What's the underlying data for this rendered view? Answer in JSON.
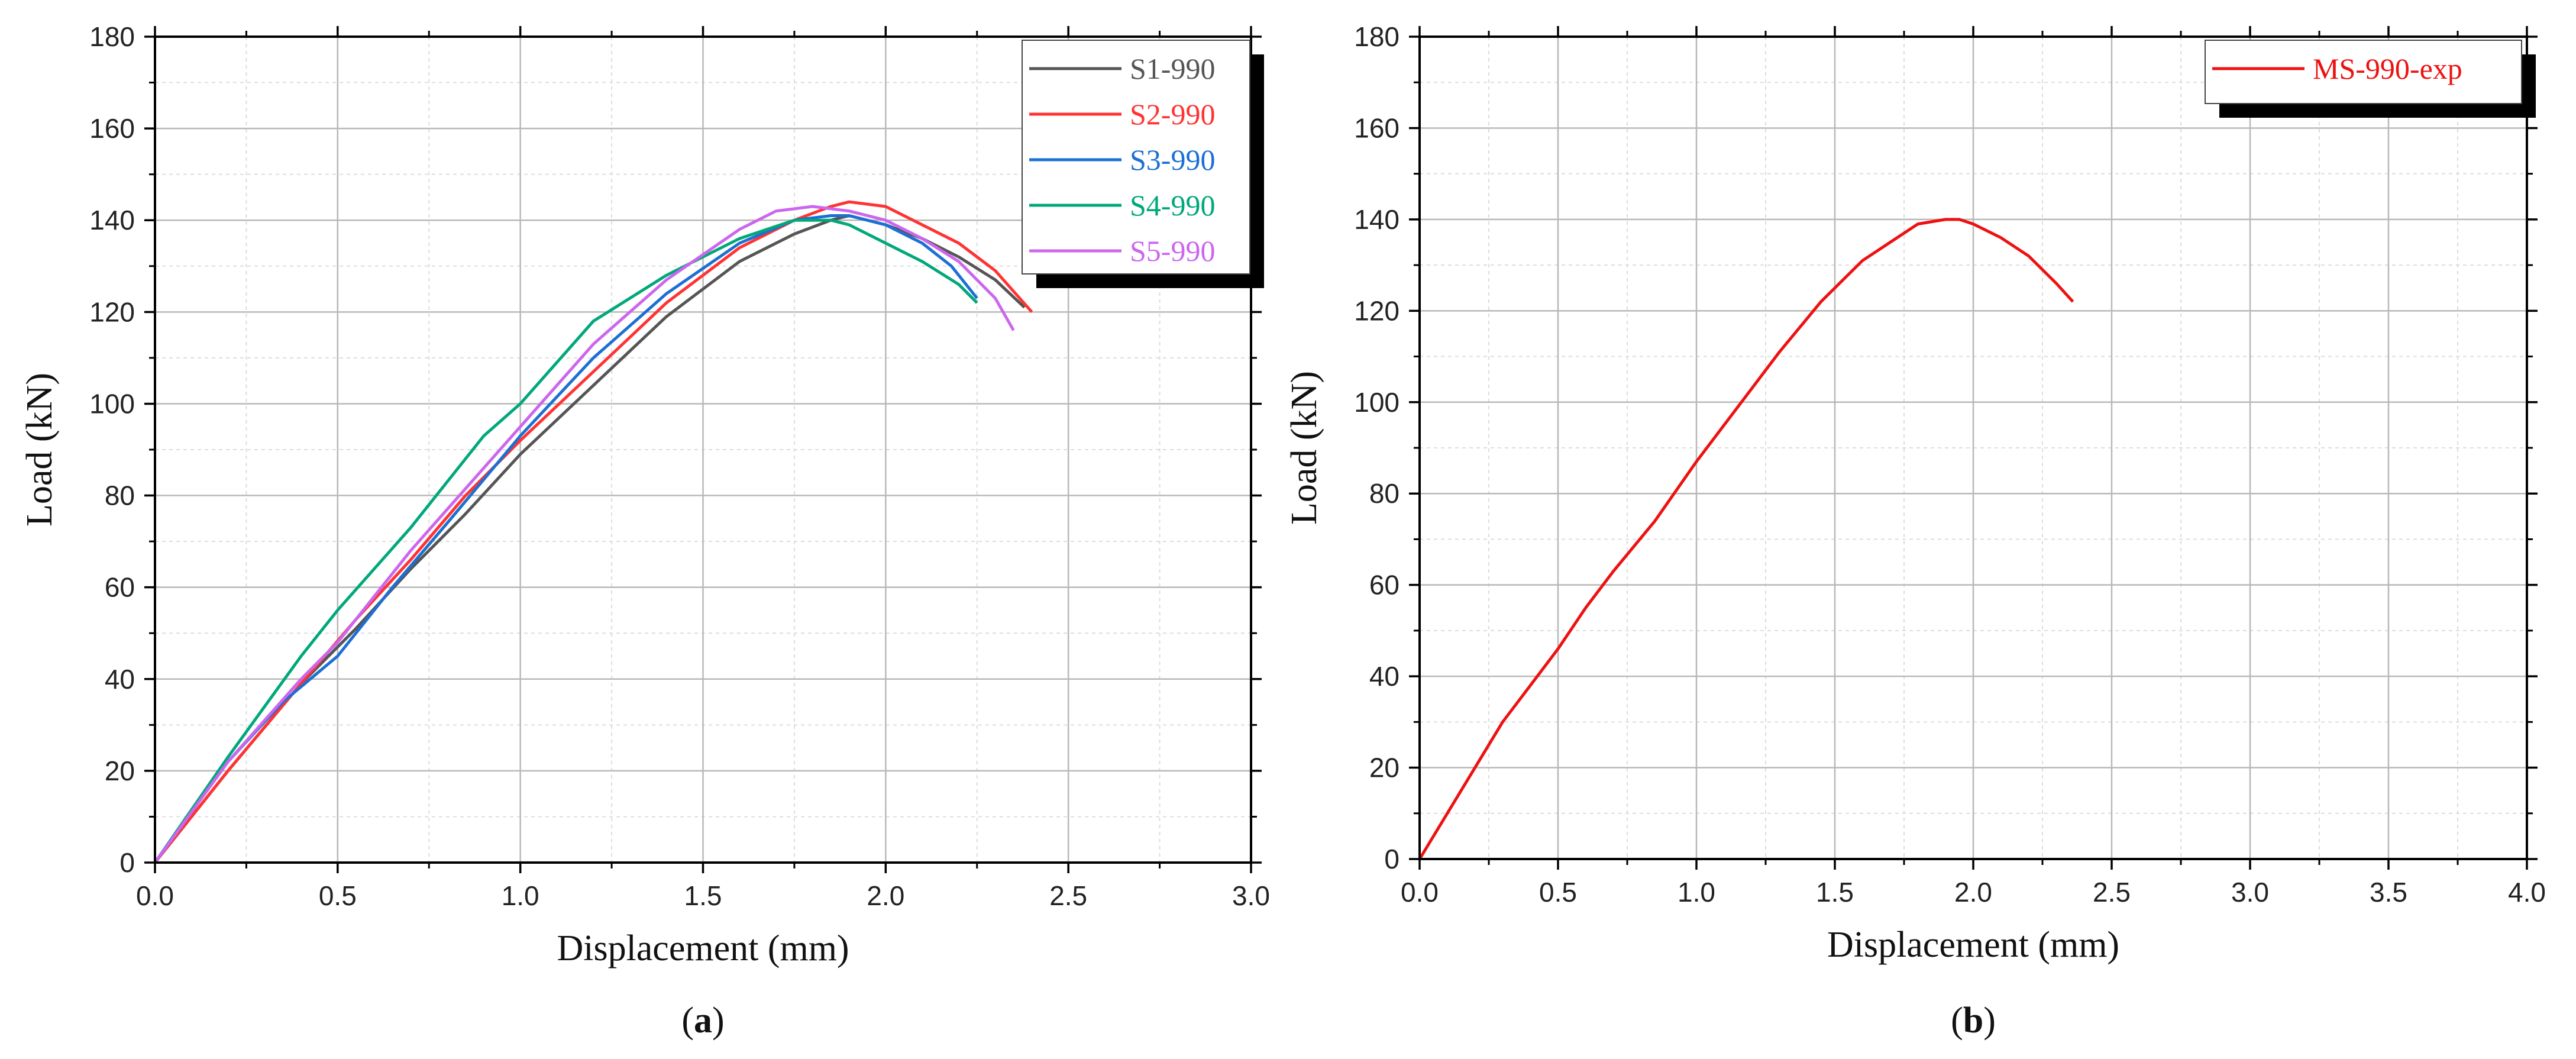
{
  "chart_data": [
    {
      "type": "line",
      "panel_label": "a",
      "title": "",
      "xlabel": "Displacement (mm)",
      "ylabel": "Load (kN)",
      "xlim": [
        0.0,
        3.0
      ],
      "ylim": [
        0,
        180
      ],
      "xticks": [
        "0.0",
        "0.5",
        "1.0",
        "1.5",
        "2.0",
        "2.5",
        "3.0"
      ],
      "yticks": [
        "0",
        "20",
        "40",
        "60",
        "80",
        "100",
        "120",
        "140",
        "160",
        "180"
      ],
      "grid": true,
      "legend_position": "top-right",
      "series": [
        {
          "name": "S1-990",
          "color": "#555555",
          "x": [
            0,
            0.2,
            0.4,
            0.55,
            0.7,
            0.85,
            1.0,
            1.2,
            1.4,
            1.6,
            1.75,
            1.85,
            1.9,
            2.0,
            2.1,
            2.2,
            2.3,
            2.38
          ],
          "y": [
            0,
            20,
            39,
            51,
            64,
            76,
            89,
            104,
            119,
            131,
            137,
            140,
            141,
            139,
            136,
            132,
            127,
            121
          ]
        },
        {
          "name": "S2-990",
          "color": "#ff3333",
          "x": [
            0,
            0.2,
            0.4,
            0.55,
            0.7,
            0.85,
            1.0,
            1.2,
            1.4,
            1.6,
            1.75,
            1.85,
            1.9,
            2.0,
            2.1,
            2.2,
            2.3,
            2.4
          ],
          "y": [
            0,
            20,
            39,
            53,
            66,
            80,
            92,
            107,
            122,
            134,
            140,
            143,
            144,
            143,
            139,
            135,
            129,
            120
          ]
        },
        {
          "name": "S3-990",
          "color": "#1c6fd4",
          "x": [
            0,
            0.2,
            0.35,
            0.5,
            0.65,
            0.8,
            1.0,
            1.2,
            1.4,
            1.6,
            1.75,
            1.85,
            1.9,
            2.0,
            2.1,
            2.18,
            2.25
          ],
          "y": [
            0,
            22,
            35,
            45,
            60,
            74,
            93,
            110,
            124,
            135,
            140,
            141,
            141,
            139,
            135,
            130,
            123
          ]
        },
        {
          "name": "S4-990",
          "color": "#00a87a",
          "x": [
            0,
            0.2,
            0.4,
            0.5,
            0.7,
            0.9,
            1.0,
            1.2,
            1.4,
            1.6,
            1.75,
            1.85,
            1.9,
            2.0,
            2.1,
            2.2,
            2.25
          ],
          "y": [
            0,
            23,
            45,
            55,
            73,
            93,
            100,
            118,
            128,
            136,
            140,
            140,
            139,
            135,
            131,
            126,
            122
          ]
        },
        {
          "name": "S5-990",
          "color": "#cc66ee",
          "x": [
            0,
            0.2,
            0.4,
            0.5,
            0.7,
            0.9,
            1.0,
            1.2,
            1.4,
            1.6,
            1.7,
            1.8,
            1.9,
            2.0,
            2.1,
            2.2,
            2.3,
            2.35
          ],
          "y": [
            0,
            22,
            40,
            48,
            68,
            86,
            95,
            113,
            127,
            138,
            142,
            143,
            142,
            140,
            136,
            131,
            123,
            116
          ]
        }
      ]
    },
    {
      "type": "line",
      "panel_label": "b",
      "title": "",
      "xlabel": "Displacement (mm)",
      "ylabel": "Load (kN)",
      "xlim": [
        0.0,
        4.0
      ],
      "ylim": [
        0,
        180
      ],
      "xticks": [
        "0.0",
        "0.5",
        "1.0",
        "1.5",
        "2.0",
        "2.5",
        "3.0",
        "3.5",
        "4.0"
      ],
      "yticks": [
        "0",
        "20",
        "40",
        "60",
        "80",
        "100",
        "120",
        "140",
        "160",
        "180"
      ],
      "grid": true,
      "legend_position": "top-right",
      "series": [
        {
          "name": "MS-990-exp",
          "color": "#ee1111",
          "x": [
            0,
            0.1,
            0.2,
            0.3,
            0.4,
            0.5,
            0.6,
            0.7,
            0.85,
            1.0,
            1.15,
            1.3,
            1.45,
            1.6,
            1.7,
            1.8,
            1.9,
            1.95,
            2.0,
            2.1,
            2.2,
            2.3,
            2.36
          ],
          "y": [
            0,
            10,
            20,
            30,
            38,
            46,
            55,
            63,
            74,
            87,
            99,
            111,
            122,
            131,
            135,
            139,
            140,
            140,
            139,
            136,
            132,
            126,
            122
          ]
        }
      ]
    }
  ]
}
